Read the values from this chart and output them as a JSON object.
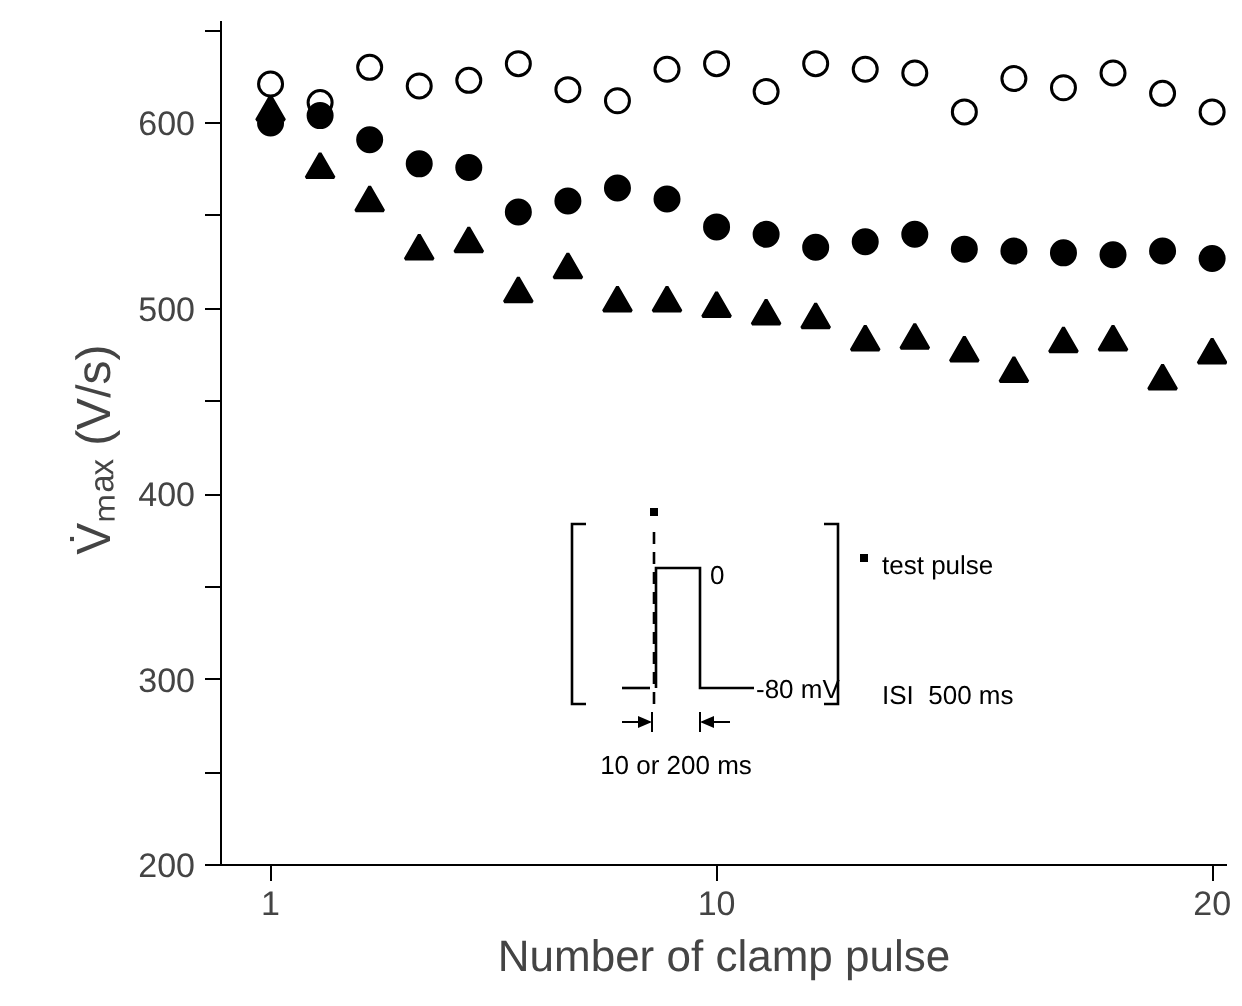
{
  "chart_data": {
    "type": "scatter",
    "xlabel": "Number of clamp pulse",
    "ylabel": "V̇ₘₐₓ  (V/s)",
    "x": [
      1,
      2,
      3,
      4,
      5,
      6,
      7,
      8,
      9,
      10,
      11,
      12,
      13,
      14,
      15,
      16,
      17,
      18,
      19,
      20
    ],
    "xlim": [
      0,
      20.3
    ],
    "xticks": [
      1,
      10,
      20
    ],
    "ylim": [
      200,
      655
    ],
    "yticks": [
      200,
      {
        "value": 250,
        "label": null
      },
      300,
      {
        "value": 350,
        "label": null
      },
      400,
      {
        "value": 450,
        "label": null
      },
      500,
      {
        "value": 550,
        "label": null
      },
      600,
      {
        "value": 650,
        "label": null
      }
    ],
    "grid": false,
    "series": [
      {
        "color": "#ffffff",
        "marker": "circle",
        "values": [
          621,
          611,
          630,
          620,
          623,
          632,
          618,
          612,
          629,
          632,
          617,
          632,
          629,
          627,
          606,
          624,
          619,
          627,
          616,
          606
        ]
      },
      {
        "color": "#000000",
        "marker": "circle",
        "values": [
          600,
          604,
          591,
          578,
          576,
          552,
          558,
          565,
          559,
          544,
          540,
          533,
          536,
          540,
          532,
          531,
          530,
          529,
          531,
          527
        ]
      },
      {
        "color": "#000000",
        "marker": "triangle",
        "values": [
          606,
          575,
          557,
          531,
          535,
          508,
          521,
          503,
          503,
          500,
          496,
          494,
          482,
          483,
          476,
          465,
          481,
          482,
          461,
          475
        ]
      }
    ],
    "annotations": [
      "0",
      "-80 mV",
      "test pulse",
      "ISI  500 ms",
      "10 or 200 ms"
    ]
  }
}
